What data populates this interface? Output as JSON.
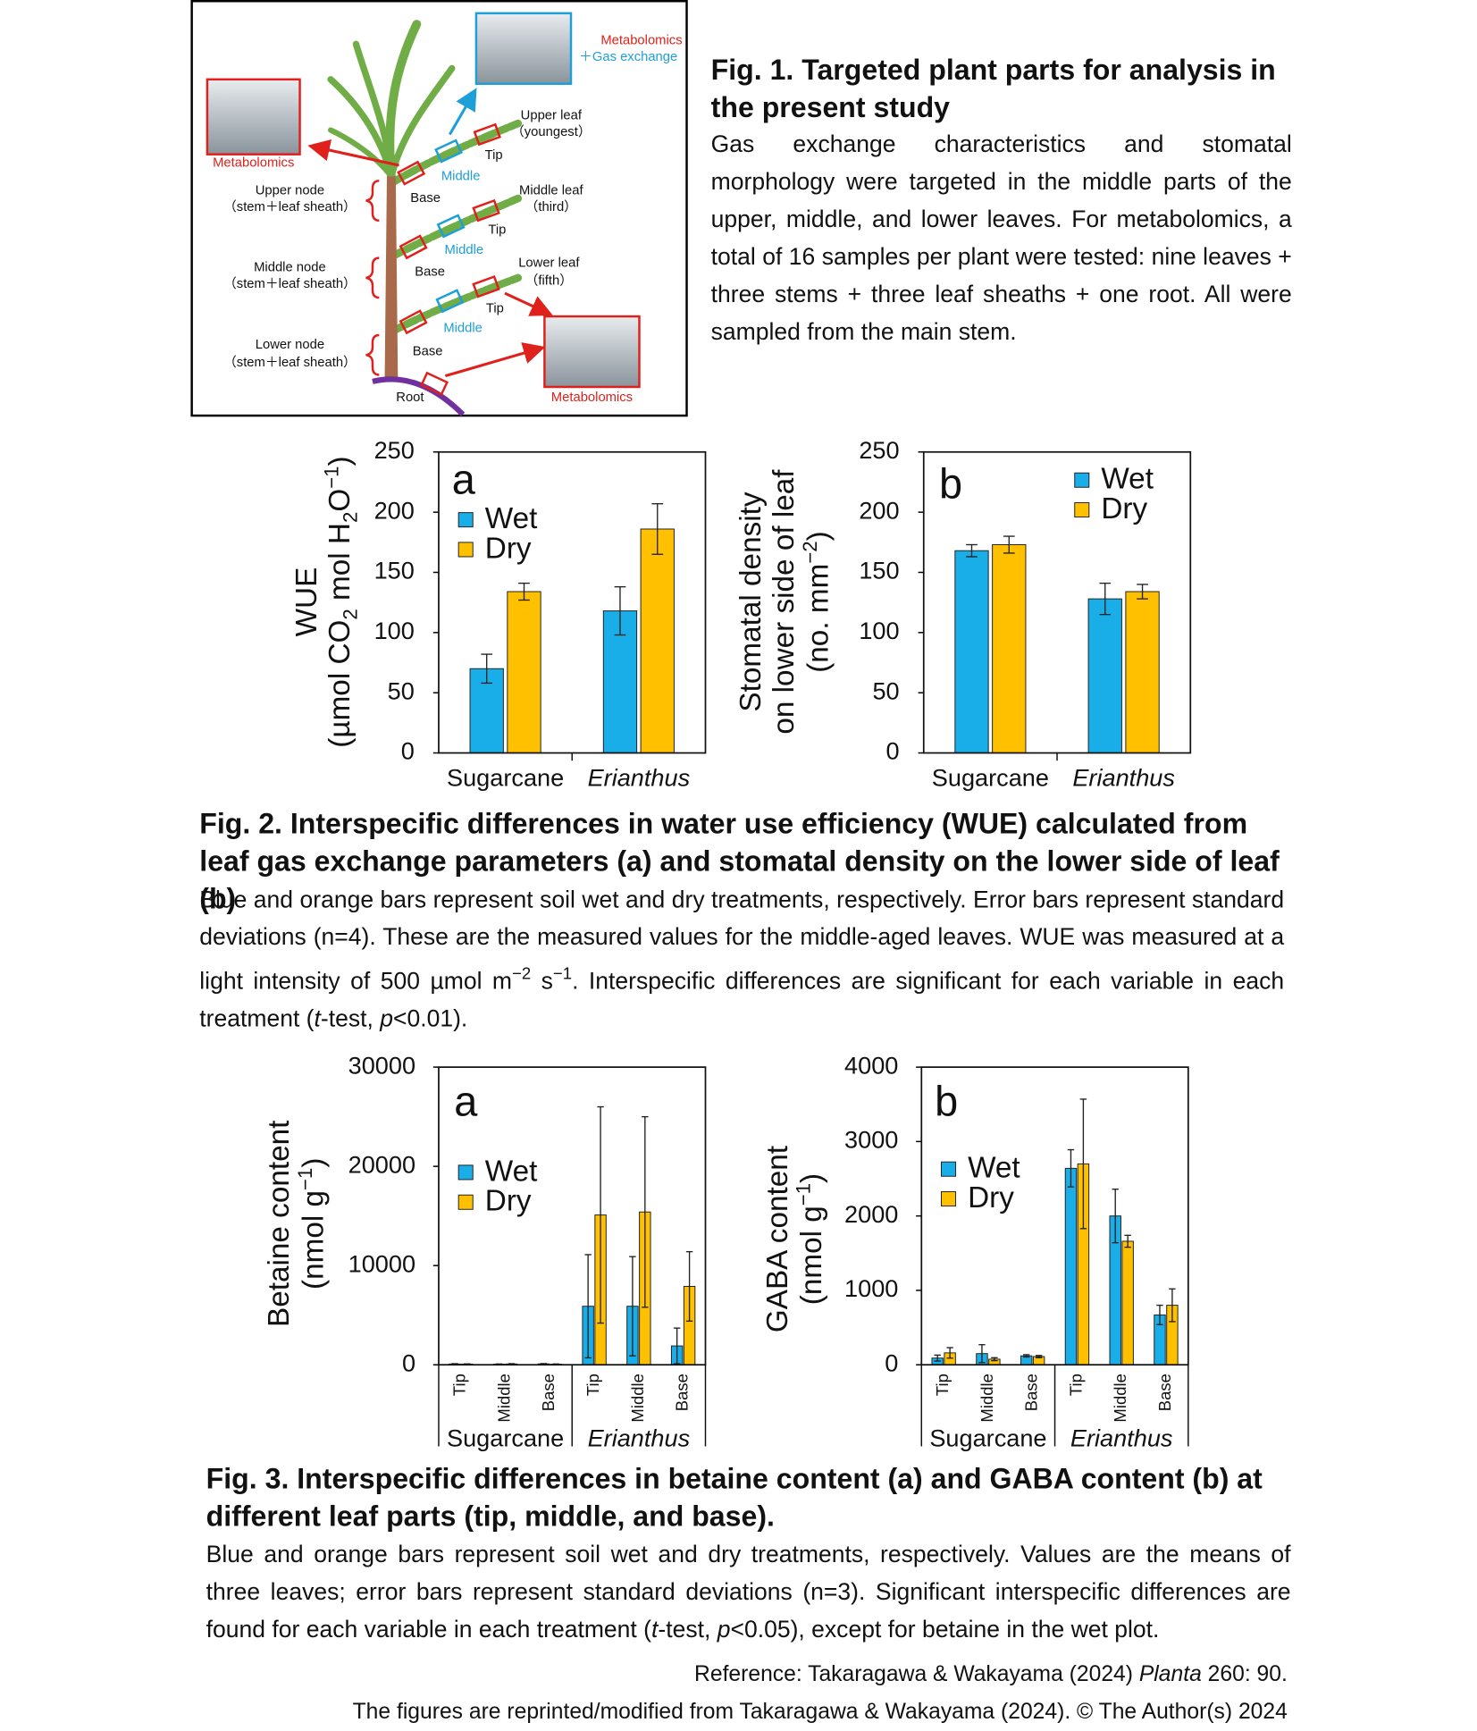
{
  "document": {
    "fig1": {
      "title": "Fig. 1. Targeted plant parts for analysis in the present study",
      "text": "Gas exchange characteristics and stomatal morphology were targeted in the middle parts of the upper, middle, and lower leaves. For metabolomics, a total of 16 samples per plant were tested: nine leaves + three stems + three leaf sheaths + one root. All were sampled from the main stem.",
      "labels": [
        "Metabolomics",
        "＋Gas exchange",
        "Metabolomics",
        "Upper leaf",
        "（youngest）",
        "Tip",
        "Middle",
        "Base",
        "Upper node",
        "（stem＋leaf sheath）",
        "Middle leaf",
        "（third）",
        "Tip",
        "Middle",
        "Base",
        "Middle node",
        "（stem＋leaf sheath）",
        "Lower leaf",
        "（fifth）",
        "Tip",
        "Middle",
        "Base",
        "Lower node",
        "（stem＋leaf sheath）",
        "Root",
        "Metabolomics"
      ]
    },
    "fig2": {
      "title": "Fig. 2. Interspecific differences in water use efficiency (WUE) calculated from leaf gas exchange parameters (a) and stomatal density on the lower side of leaf (b)",
      "text": [
        "Blue and orange bars represent soil wet and dry treatments, respectively. Error bars represent standard deviations (n=4). These are the measured values for the middle-aged leaves. WUE was measured at a light intensity of 500 µmol m",
        "−2",
        " s",
        "−1",
        ". Interspecific differences are significant for each variable in each treatment (",
        "t",
        "-test, ",
        "p",
        "<0.01)."
      ]
    },
    "fig3": {
      "title": "Fig. 3. Interspecific differences in betaine content (a) and GABA content (b) at different leaf parts (tip, middle, and base).",
      "text": [
        "Blue and orange bars represent soil wet and dry treatments, respectively. Values are the means of three leaves; error bars represent standard deviations (n=3). Significant interspecific differences are found for each variable in each treatment (",
        "t",
        "-test, ",
        "p",
        "<0.05), except for betaine in the wet plot."
      ]
    },
    "reference": [
      "Reference: Takaragawa & Wakayama (2024) ",
      "Planta",
      " 260: 90."
    ],
    "credit": "The figures are reprinted/modified from Takaragawa & Wakayama (2024). © The Author(s) 2024"
  },
  "chart_data": [
    {
      "type": "bar",
      "panel": "a",
      "ylabel": [
        [
          "WUE"
        ],
        [
          "(µmol CO",
          "2",
          " mol H",
          "2",
          "O",
          "−1",
          ")"
        ]
      ],
      "categories": [
        "Sugarcane",
        "Erianthus"
      ],
      "series": [
        {
          "name": "Wet",
          "color": "#1aaee8",
          "values": [
            70,
            118
          ],
          "errors": [
            12,
            20
          ]
        },
        {
          "name": "Dry",
          "color": "#ffc000",
          "values": [
            134,
            186
          ],
          "errors": [
            7,
            21
          ]
        }
      ],
      "ylim": [
        0,
        250
      ],
      "yticks": [
        0,
        50,
        100,
        150,
        200,
        250
      ],
      "legend": "upper left"
    },
    {
      "type": "bar",
      "panel": "b",
      "ylabel": [
        [
          "Stomatal density"
        ],
        [
          "on lower side of leaf"
        ],
        [
          "(no. mm",
          "−2",
          ")"
        ]
      ],
      "categories": [
        "Sugarcane",
        "Erianthus"
      ],
      "series": [
        {
          "name": "Wet",
          "color": "#1aaee8",
          "values": [
            168,
            128
          ],
          "errors": [
            5,
            13
          ]
        },
        {
          "name": "Dry",
          "color": "#ffc000",
          "values": [
            173,
            134
          ],
          "errors": [
            7,
            6
          ]
        }
      ],
      "ylim": [
        0,
        250
      ],
      "yticks": [
        0,
        50,
        100,
        150,
        200,
        250
      ],
      "legend": "upper right"
    },
    {
      "type": "bar",
      "panel": "a",
      "ylabel": [
        [
          "Betaine content"
        ],
        [
          "(nmol g",
          "−1",
          ")"
        ]
      ],
      "categories": [
        "Tip",
        "Middle",
        "Base",
        "Tip",
        "Middle",
        "Base"
      ],
      "groups": [
        "Sugarcane",
        "Erianthus"
      ],
      "series": [
        {
          "name": "Wet",
          "color": "#1aaee8",
          "values": [
            80,
            60,
            90,
            5900,
            5900,
            1900
          ],
          "errors": [
            30,
            20,
            30,
            5200,
            5000,
            1800
          ]
        },
        {
          "name": "Dry",
          "color": "#ffc000",
          "values": [
            70,
            80,
            60,
            15100,
            15400,
            7900
          ],
          "errors": [
            20,
            30,
            20,
            10900,
            9600,
            3500
          ]
        }
      ],
      "ylim": [
        0,
        30000
      ],
      "yticks": [
        0,
        10000,
        20000,
        30000
      ],
      "legend": "upper left"
    },
    {
      "type": "bar",
      "panel": "b",
      "ylabel": [
        [
          "GABA content"
        ],
        [
          "(nmol g",
          "−1",
          ")"
        ]
      ],
      "categories": [
        "Tip",
        "Middle",
        "Base",
        "Tip",
        "Middle",
        "Base"
      ],
      "groups": [
        "Sugarcane",
        "Erianthus"
      ],
      "series": [
        {
          "name": "Wet",
          "color": "#1aaee8",
          "values": [
            90,
            150,
            120,
            2640,
            2000,
            670
          ],
          "errors": [
            40,
            120,
            15,
            250,
            360,
            130
          ]
        },
        {
          "name": "Dry",
          "color": "#ffc000",
          "values": [
            160,
            75,
            110,
            2700,
            1660,
            800
          ],
          "errors": [
            70,
            20,
            15,
            870,
            80,
            220
          ]
        }
      ],
      "ylim": [
        0,
        4000
      ],
      "yticks": [
        0,
        1000,
        2000,
        3000,
        4000
      ],
      "legend": "upper left"
    }
  ]
}
